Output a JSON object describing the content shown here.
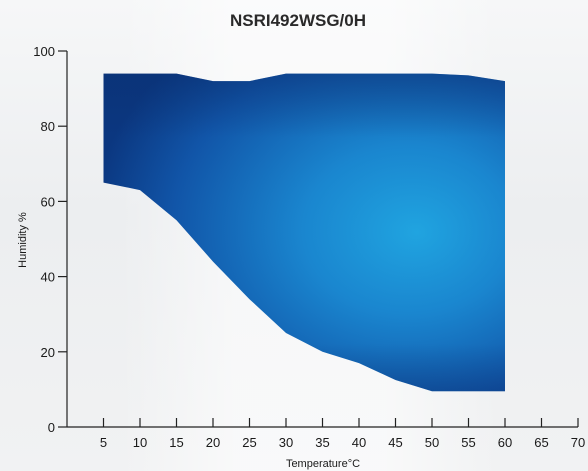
{
  "chart_data": {
    "type": "area",
    "title": "NSRI492WSG/0H",
    "xlabel": "Temperature°C",
    "ylabel": "Humidity %",
    "xlim": [
      0,
      70
    ],
    "ylim": [
      0,
      100
    ],
    "x_ticks": [
      5,
      10,
      15,
      20,
      25,
      30,
      35,
      40,
      45,
      50,
      55,
      60,
      65,
      70
    ],
    "y_ticks": [
      0,
      20,
      40,
      60,
      80,
      100
    ],
    "grid": false,
    "area": {
      "upper": [
        {
          "x": 5,
          "y": 94
        },
        {
          "x": 10,
          "y": 94
        },
        {
          "x": 15,
          "y": 94
        },
        {
          "x": 20,
          "y": 92
        },
        {
          "x": 25,
          "y": 92
        },
        {
          "x": 30,
          "y": 94
        },
        {
          "x": 35,
          "y": 94
        },
        {
          "x": 40,
          "y": 94
        },
        {
          "x": 45,
          "y": 94
        },
        {
          "x": 50,
          "y": 94
        },
        {
          "x": 55,
          "y": 93.5
        },
        {
          "x": 60,
          "y": 92
        }
      ],
      "lower": [
        {
          "x": 5,
          "y": 65
        },
        {
          "x": 10,
          "y": 63
        },
        {
          "x": 15,
          "y": 55
        },
        {
          "x": 20,
          "y": 44
        },
        {
          "x": 25,
          "y": 34
        },
        {
          "x": 30,
          "y": 25
        },
        {
          "x": 35,
          "y": 20
        },
        {
          "x": 40,
          "y": 17
        },
        {
          "x": 45,
          "y": 12.5
        },
        {
          "x": 50,
          "y": 9.5
        },
        {
          "x": 55,
          "y": 9.5
        },
        {
          "x": 60,
          "y": 9.5
        }
      ]
    },
    "colors": {
      "area_dark": "#0d3f8f",
      "area_light": "#1e9ad9",
      "axis": "#222222",
      "title": "#2a2a2a"
    }
  }
}
